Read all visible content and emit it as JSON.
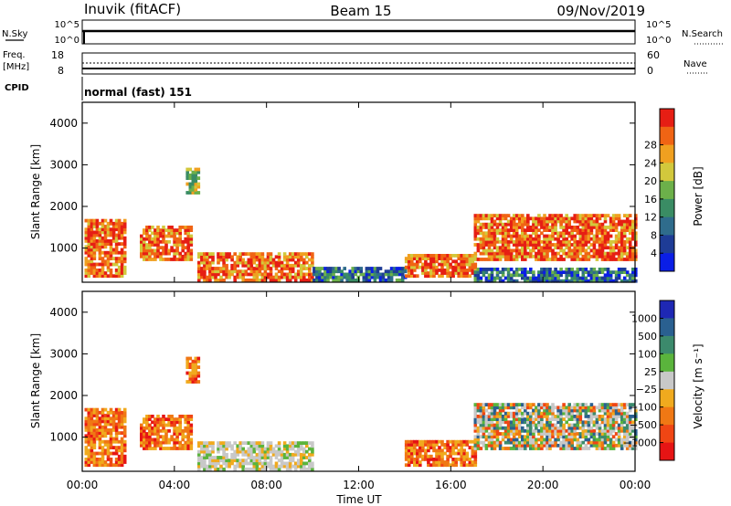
{
  "header": {
    "station": "Inuvik (fitACF)",
    "beam": "Beam 15",
    "date": "09/Nov/2019"
  },
  "nsky_panel": {
    "left_label": "N.Sky",
    "left_ticks": [
      "10^5",
      "10^0"
    ],
    "right_ticks": [
      "10^5",
      "10^0"
    ],
    "right_label": "N.Search"
  },
  "freq_panel": {
    "left_label_1": "Freq.",
    "left_label_2": "[MHz]",
    "left_ticks": [
      "18",
      "8"
    ],
    "right_ticks": [
      "60",
      "0"
    ],
    "right_label": "Nave"
  },
  "cpid": {
    "label": "CPID",
    "value": "normal (fast) 151"
  },
  "axes": {
    "ylabel": "Slant Range [km]",
    "xlabel": "Time UT",
    "xticks": [
      "00:00",
      "04:00",
      "08:00",
      "12:00",
      "16:00",
      "20:00",
      "00:00"
    ],
    "yticks": [
      "1000",
      "2000",
      "3000",
      "4000"
    ]
  },
  "colorbars": {
    "power": {
      "label": "Power [dB]",
      "ticks": [
        "4",
        "8",
        "12",
        "16",
        "20",
        "24",
        "28"
      ],
      "colors": [
        "#0a1ee6",
        "#1e3c96",
        "#2f6c8c",
        "#3a8c64",
        "#6cb04a",
        "#d2c83c",
        "#f0a020",
        "#f06414",
        "#e61e14"
      ]
    },
    "velocity": {
      "label": "Velocity [m s⁻¹]",
      "ticks": [
        "1000",
        "500",
        "100",
        "25",
        "−25",
        "−100",
        "−500",
        "−1000"
      ],
      "colors": [
        "#1e28b4",
        "#2a6090",
        "#3c8a6c",
        "#5ab43c",
        "#c8c8c8",
        "#f0aa1e",
        "#f07814",
        "#f04614",
        "#e61414"
      ]
    }
  },
  "chart_data": [
    {
      "type": "heatmap",
      "title": "Power",
      "x_range_hours": [
        0,
        24
      ],
      "ylim": [
        180,
        4500
      ],
      "quantity": "Power [dB]",
      "regions": [
        {
          "t0": 0.1,
          "t1": 1.8,
          "r0": 300,
          "r1": 1700,
          "level": "high"
        },
        {
          "t0": 2.5,
          "t1": 4.7,
          "r0": 700,
          "r1": 1500,
          "level": "high"
        },
        {
          "t0": 4.5,
          "t1": 5.0,
          "r0": 2300,
          "r1": 2900,
          "level": "medium"
        },
        {
          "t0": 5.0,
          "t1": 10.0,
          "r0": 200,
          "r1": 900,
          "level": "high"
        },
        {
          "t0": 10.0,
          "t1": 14.0,
          "r0": 200,
          "r1": 500,
          "level": "low"
        },
        {
          "t0": 14.0,
          "t1": 17.0,
          "r0": 300,
          "r1": 850,
          "level": "high"
        },
        {
          "t0": 17.0,
          "t1": 24.0,
          "r0": 700,
          "r1": 1800,
          "level": "high"
        },
        {
          "t0": 17.0,
          "t1": 24.0,
          "r0": 180,
          "r1": 500,
          "level": "low"
        }
      ]
    },
    {
      "type": "heatmap",
      "title": "Velocity",
      "x_range_hours": [
        0,
        24
      ],
      "ylim": [
        180,
        4500
      ],
      "quantity": "Velocity [m s-1]",
      "regions": [
        {
          "t0": 0.1,
          "t1": 1.8,
          "r0": 300,
          "r1": 1700,
          "level": "negative"
        },
        {
          "t0": 2.5,
          "t1": 4.7,
          "r0": 700,
          "r1": 1500,
          "level": "negative"
        },
        {
          "t0": 4.5,
          "t1": 5.0,
          "r0": 2300,
          "r1": 2900,
          "level": "negative"
        },
        {
          "t0": 5.0,
          "t1": 10.0,
          "r0": 200,
          "r1": 900,
          "level": "near-zero"
        },
        {
          "t0": 14.0,
          "t1": 17.0,
          "r0": 300,
          "r1": 900,
          "level": "negative"
        },
        {
          "t0": 17.0,
          "t1": 24.0,
          "r0": 700,
          "r1": 1800,
          "level": "mixed"
        }
      ]
    }
  ]
}
